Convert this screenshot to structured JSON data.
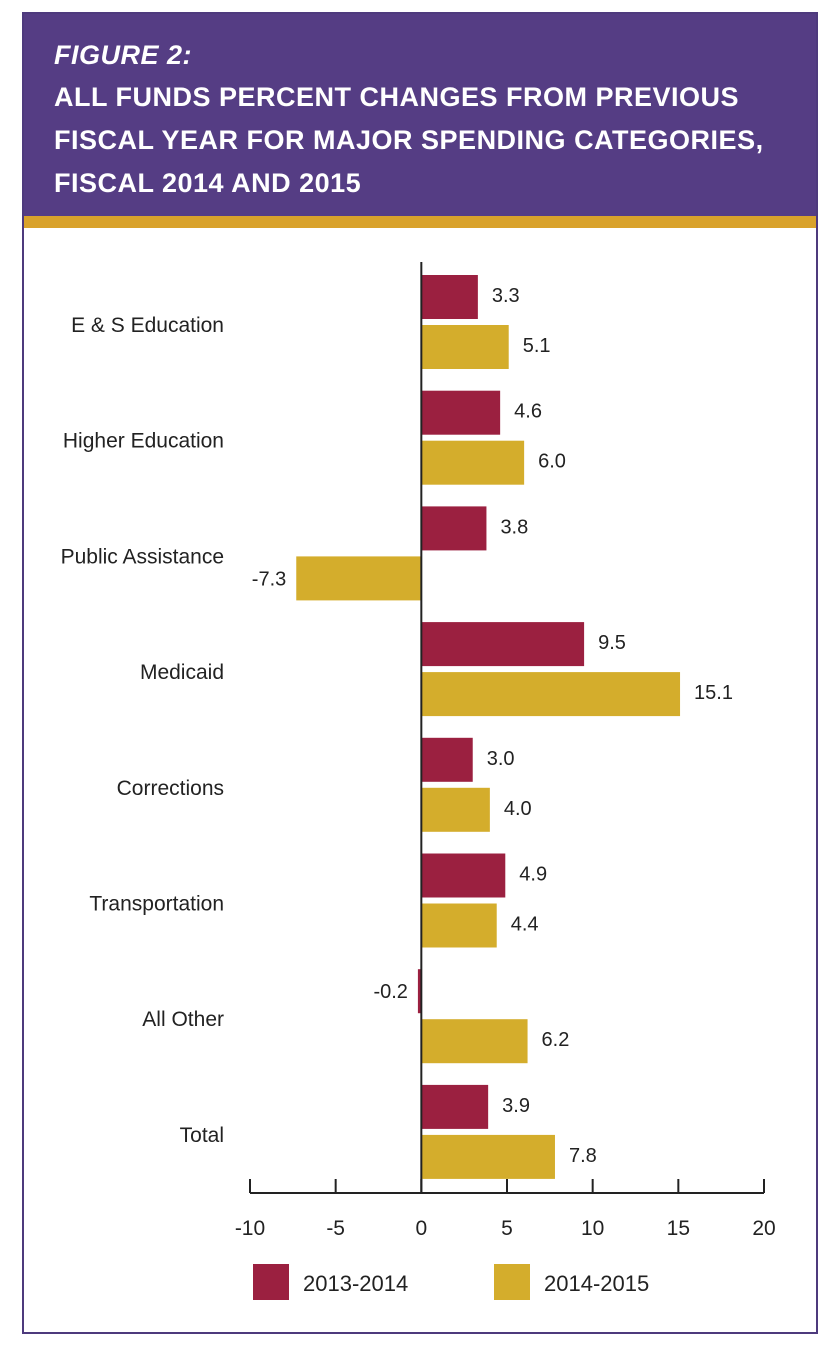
{
  "header": {
    "figure_label": "FIGURE 2:",
    "title_lines": [
      "ALL FUNDS PERCENT CHANGES FROM PREVIOUS",
      "FISCAL YEAR FOR MAJOR SPENDING CATEGORIES,",
      "FISCAL 2014 AND 2015"
    ]
  },
  "colors": {
    "header_bg": "#553d84",
    "accent_bar": "#d9a22b",
    "series_2013_2014": "#9b2040",
    "series_2014_2015": "#d4ad2c"
  },
  "chart_data": {
    "type": "bar",
    "orientation": "horizontal",
    "title": "ALL FUNDS PERCENT CHANGES FROM PREVIOUS FISCAL YEAR FOR MAJOR SPENDING CATEGORIES, FISCAL 2014 AND 2015",
    "categories": [
      "E & S Education",
      "Higher Education",
      "Public Assistance",
      "Medicaid",
      "Corrections",
      "Transportation",
      "All Other",
      "Total"
    ],
    "series": [
      {
        "name": "2013-2014",
        "values": [
          3.3,
          4.6,
          3.8,
          9.5,
          3.0,
          4.9,
          -0.2,
          3.9
        ],
        "labels": [
          "3.3",
          "4.6",
          "3.8",
          "9.5",
          "3.0",
          "4.9",
          "-0.2",
          "3.9"
        ]
      },
      {
        "name": "2014-2015",
        "values": [
          5.1,
          6.0,
          -7.3,
          15.1,
          4.0,
          4.4,
          6.2,
          7.8
        ],
        "labels": [
          "5.1",
          "6.0",
          "-7.3",
          "15.1",
          "4.0",
          "4.4",
          "6.2",
          "7.8"
        ]
      }
    ],
    "xlim": [
      -10,
      20
    ],
    "xticks": [
      -10,
      -5,
      0,
      5,
      10,
      15,
      20
    ],
    "xtick_labels": [
      "-10",
      "-5",
      "0",
      "5",
      "10",
      "15",
      "20"
    ],
    "legend_position": "bottom"
  }
}
